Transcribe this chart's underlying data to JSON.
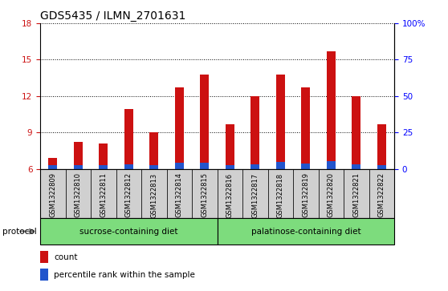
{
  "title": "GDS5435 / ILMN_2701631",
  "samples": [
    "GSM1322809",
    "GSM1322810",
    "GSM1322811",
    "GSM1322812",
    "GSM1322813",
    "GSM1322814",
    "GSM1322815",
    "GSM1322816",
    "GSM1322817",
    "GSM1322818",
    "GSM1322819",
    "GSM1322820",
    "GSM1322821",
    "GSM1322822"
  ],
  "count_values": [
    6.9,
    8.2,
    8.1,
    10.9,
    9.0,
    12.7,
    13.8,
    9.7,
    12.0,
    13.8,
    12.7,
    15.7,
    12.0,
    9.7
  ],
  "bar_base": 6.0,
  "ylim_left": [
    6,
    18
  ],
  "ylim_right": [
    0,
    100
  ],
  "yticks_left": [
    6,
    9,
    12,
    15,
    18
  ],
  "yticks_right": [
    0,
    25,
    50,
    75,
    100
  ],
  "ytick_labels_right": [
    "0",
    "25",
    "50",
    "75",
    "100%"
  ],
  "count_color": "#cc1111",
  "percentile_color": "#2255cc",
  "bar_width": 0.35,
  "plot_bg_color": "#ffffff",
  "sample_bg_color": "#d0d0d0",
  "sucrose_label": "sucrose-containing diet",
  "palatinose_label": "palatinose-containing diet",
  "group_color": "#7ddc7d",
  "protocol_label": "protocol",
  "legend_count": "count",
  "legend_percentile": "percentile rank within the sample",
  "title_fontsize": 10,
  "tick_fontsize": 7.5,
  "percentile_bar_heights": [
    0.28,
    0.28,
    0.28,
    0.38,
    0.28,
    0.48,
    0.48,
    0.28,
    0.38,
    0.55,
    0.42,
    0.62,
    0.38,
    0.32
  ]
}
